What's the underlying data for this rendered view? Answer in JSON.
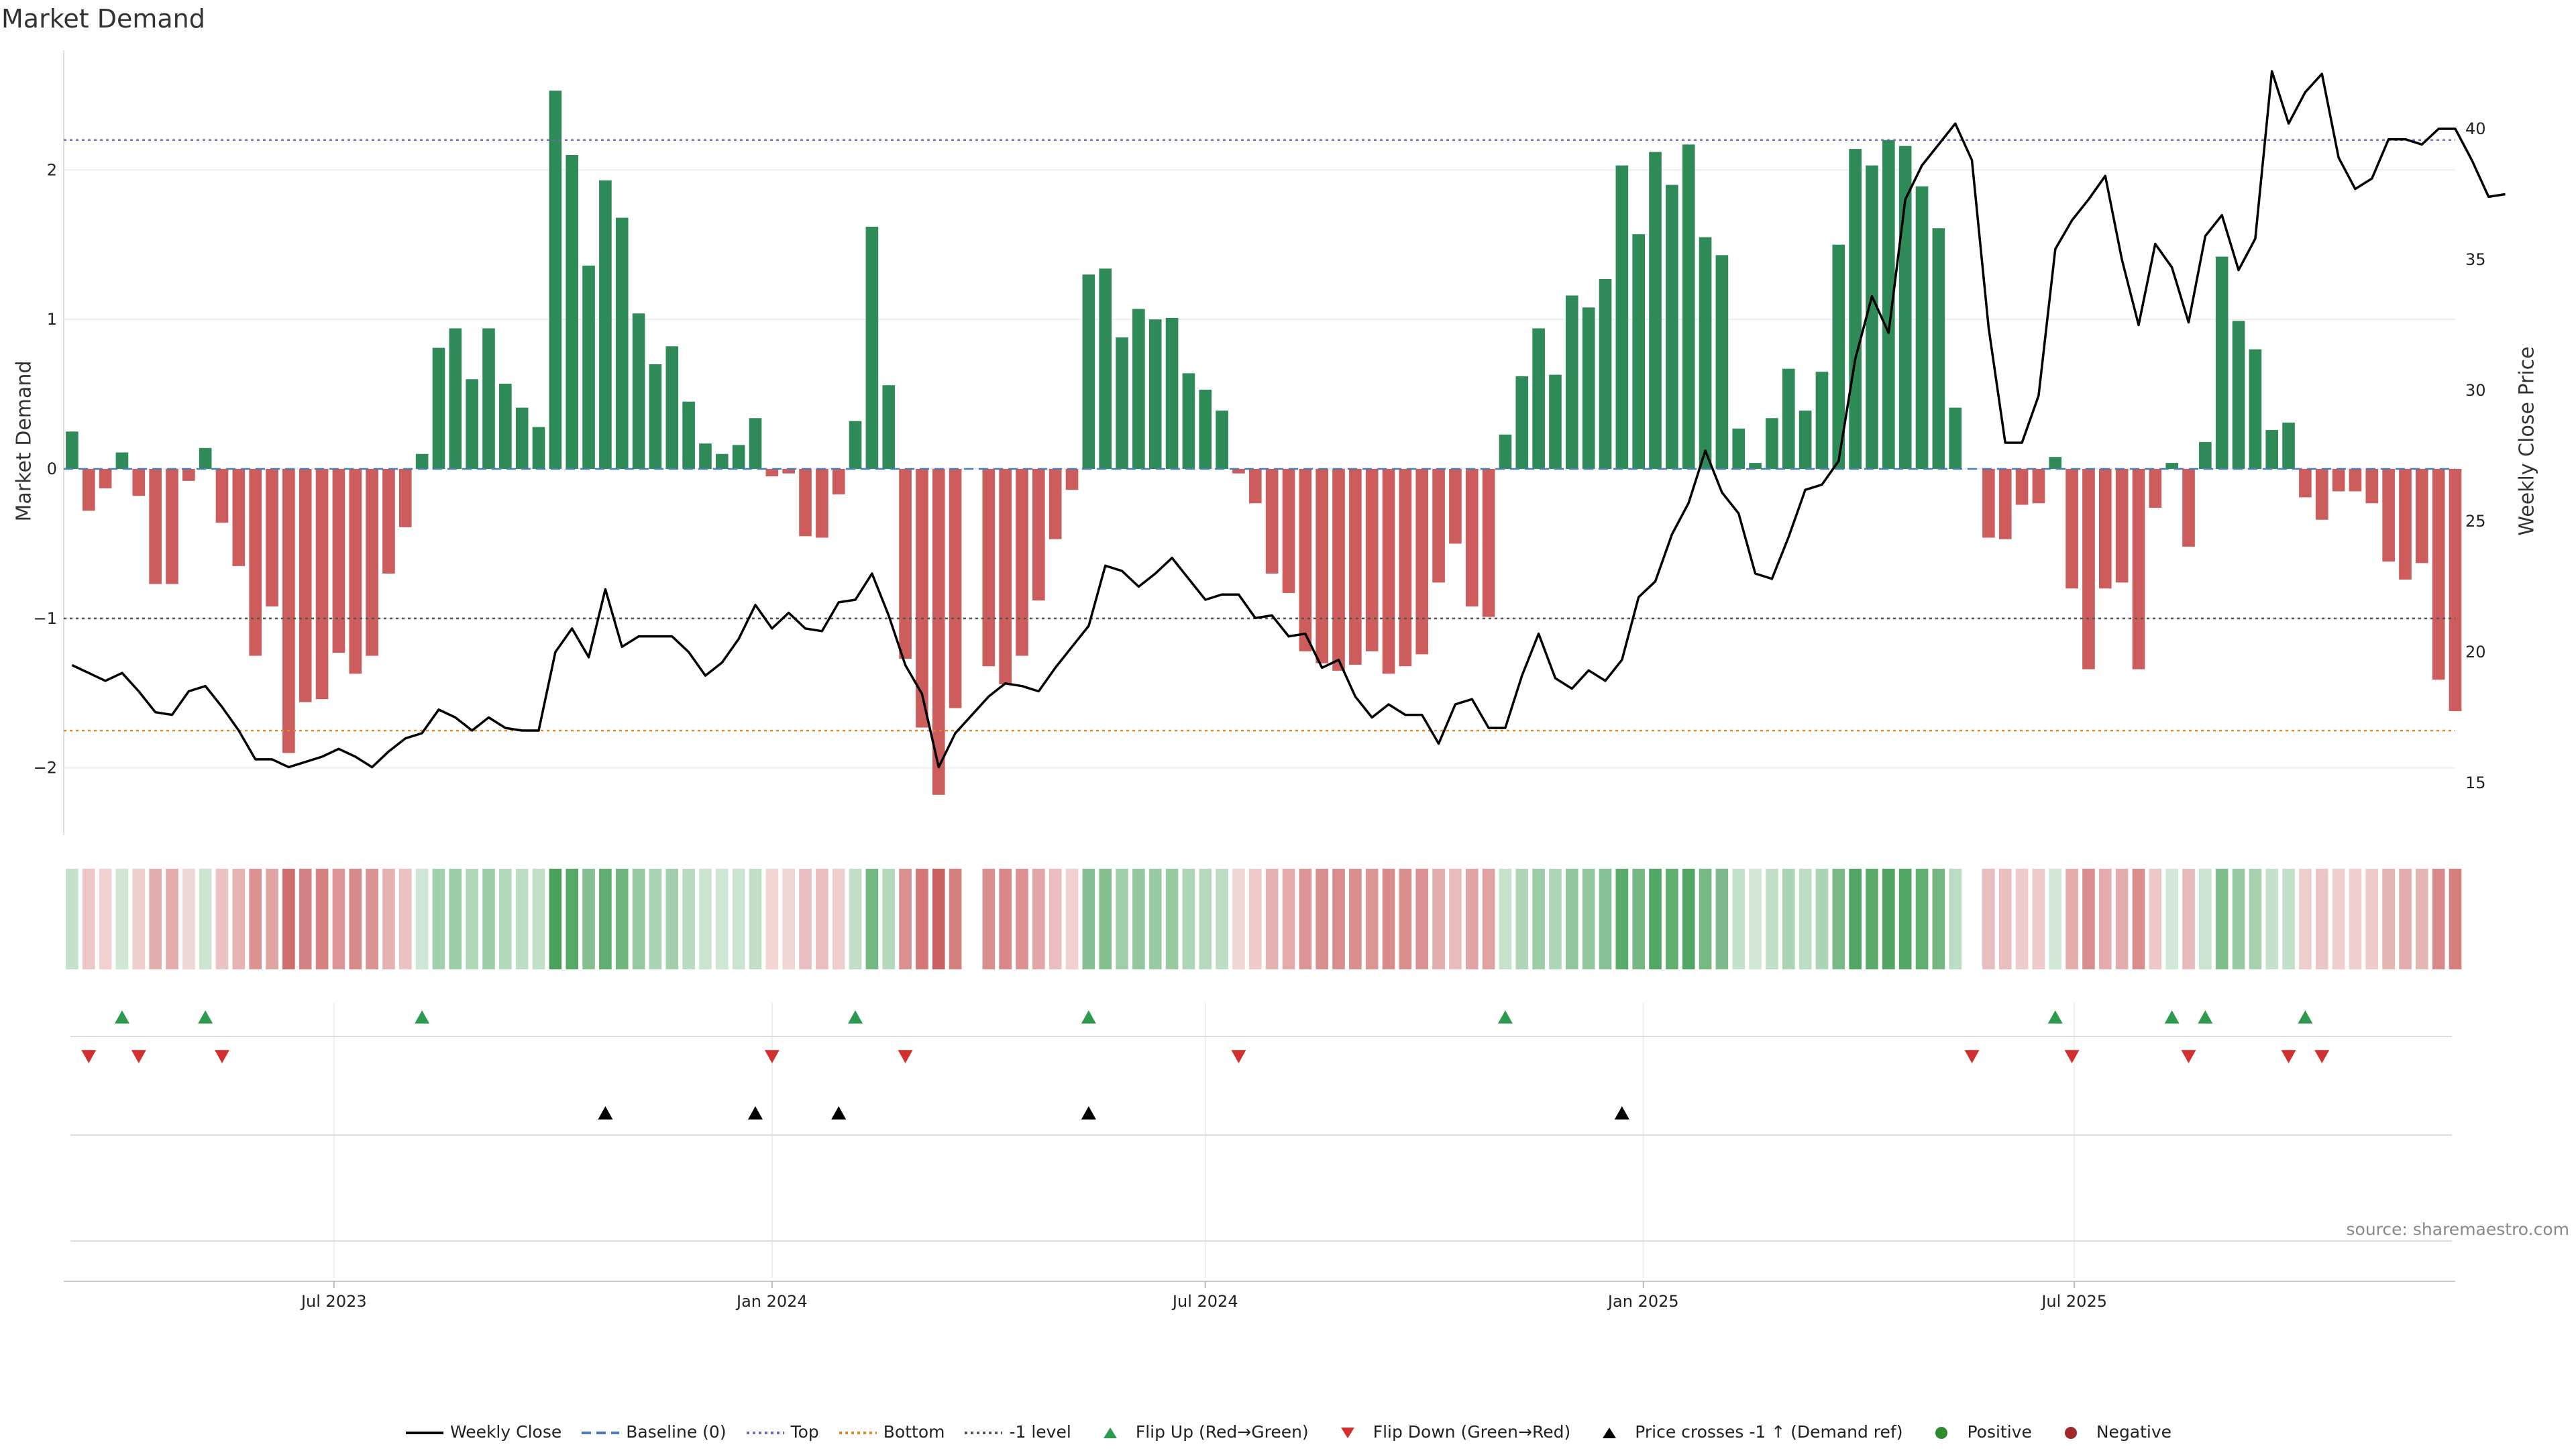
{
  "chart_data": {
    "type": "bar",
    "title": "Market Demand",
    "ylabel": "Market Demand",
    "y2label": "Weekly Close Price",
    "ylim": [
      -2.45,
      2.8
    ],
    "y2lim": [
      13,
      43
    ],
    "yticks": [
      2,
      1,
      0,
      -1,
      -2
    ],
    "ytick_labels": [
      "2",
      "1",
      "0",
      "−1",
      "−2"
    ],
    "y2ticks": [
      40,
      35,
      30,
      25,
      20,
      15
    ],
    "levels": {
      "top": 2.2,
      "bottom": -1.75,
      "minus_one": -1,
      "baseline": 0
    },
    "date_start": "2023-03-13",
    "xticks": [
      "Jul 2023",
      "Jan 2024",
      "Jul 2024",
      "Jan 2025",
      "Jul 2025"
    ],
    "xtick_dates": [
      "2023-07-01",
      "2024-01-01",
      "2024-07-01",
      "2025-01-01",
      "2025-07-01"
    ],
    "x_end_week": 143.5,
    "demand": [
      0.25,
      -0.28,
      -0.13,
      0.11,
      -0.18,
      -0.77,
      -0.77,
      -0.08,
      0.14,
      -0.36,
      -0.65,
      -1.25,
      -0.92,
      -1.9,
      -1.56,
      -1.54,
      -1.23,
      -1.37,
      -1.25,
      -0.7,
      -0.39,
      0.1,
      0.81,
      0.94,
      0.6,
      0.94,
      0.57,
      0.41,
      0.28,
      2.53,
      2.1,
      1.36,
      1.93,
      1.68,
      1.04,
      0.7,
      0.82,
      0.45,
      0.17,
      0.1,
      0.16,
      0.34,
      -0.05,
      -0.03,
      -0.45,
      -0.46,
      -0.17,
      0.32,
      1.62,
      0.56,
      -1.27,
      -1.73,
      -2.18,
      -1.6,
      0,
      -1.32,
      -1.44,
      -1.25,
      -0.88,
      -0.47,
      -0.14,
      1.3,
      1.34,
      0.88,
      1.07,
      1.0,
      1.01,
      0.64,
      0.53,
      0.39,
      -0.03,
      -0.23,
      -0.7,
      -0.83,
      -1.22,
      -1.3,
      -1.35,
      -1.31,
      -1.22,
      -1.37,
      -1.32,
      -1.24,
      -0.76,
      -0.5,
      -0.92,
      -0.99,
      0.23,
      0.62,
      0.94,
      0.63,
      1.16,
      1.08,
      1.27,
      2.03,
      1.57,
      2.12,
      1.9,
      2.17,
      1.55,
      1.43,
      0.27,
      0.04,
      0.34,
      0.67,
      0.39,
      0.65,
      1.5,
      2.14,
      2.03,
      2.2,
      2.16,
      1.89,
      1.61,
      0.41,
      0,
      -0.46,
      -0.47,
      -0.24,
      -0.23,
      0.08,
      -0.8,
      -1.34,
      -0.8,
      -0.76,
      -1.34,
      -0.26,
      0.04,
      -0.52,
      0.18,
      1.42,
      0.99,
      0.8,
      0.26,
      0.31,
      -0.19,
      -0.34,
      -0.15,
      -0.15,
      -0.23,
      -0.62,
      -0.74,
      -0.63,
      -1.41,
      -1.62
    ],
    "close": [
      19.5,
      19.2,
      18.9,
      19.2,
      18.5,
      17.7,
      17.6,
      18.5,
      18.7,
      17.9,
      17.0,
      15.9,
      15.9,
      15.6,
      15.8,
      16.0,
      16.3,
      16.0,
      15.6,
      16.2,
      16.7,
      16.9,
      17.8,
      17.5,
      17.0,
      17.5,
      17.1,
      17.0,
      17.0,
      20.0,
      20.9,
      19.8,
      22.4,
      20.2,
      20.6,
      20.6,
      20.6,
      20.0,
      19.1,
      19.6,
      20.5,
      21.8,
      20.9,
      21.5,
      20.9,
      20.8,
      21.9,
      22.0,
      23.0,
      21.4,
      19.5,
      18.4,
      15.6,
      16.9,
      17.6,
      18.3,
      18.8,
      18.7,
      18.5,
      19.4,
      20.2,
      21.0,
      23.3,
      23.1,
      22.5,
      23.0,
      23.6,
      22.8,
      22.0,
      22.2,
      22.2,
      21.3,
      21.4,
      20.6,
      20.7,
      19.4,
      19.7,
      18.3,
      17.5,
      18.0,
      17.6,
      17.6,
      16.5,
      18.0,
      18.2,
      17.1,
      17.1,
      19.1,
      20.7,
      19.0,
      18.6,
      19.3,
      18.9,
      19.7,
      22.1,
      22.7,
      24.5,
      25.7,
      27.7,
      26.1,
      25.3,
      23.0,
      22.8,
      24.4,
      26.2,
      26.4,
      27.3,
      31.2,
      33.6,
      32.2,
      37.3,
      38.6,
      39.4,
      40.2,
      38.8,
      32.4,
      28.0,
      28.0,
      29.8,
      35.4,
      36.5,
      37.3,
      38.2,
      35.0,
      32.5,
      35.6,
      34.7,
      32.6,
      35.9,
      36.7,
      34.6,
      35.8,
      42.2,
      40.2,
      41.4,
      42.1,
      38.9,
      37.7,
      38.1,
      39.6,
      39.6,
      39.4,
      40.0,
      40.0,
      38.8,
      37.4,
      37.5
    ],
    "flip_up_weeks": [
      3,
      8,
      21,
      47,
      61,
      86,
      119,
      126,
      128,
      134
    ],
    "flip_down_weeks": [
      1,
      4,
      9,
      42,
      50,
      70,
      114,
      120,
      127,
      133,
      135
    ],
    "price_cross_weeks": [
      32,
      41,
      46,
      61,
      93
    ],
    "legend": [
      {
        "label": "Weekly Close",
        "kind": "line",
        "color": "#000000"
      },
      {
        "label": "Baseline (0)",
        "kind": "dash",
        "color": "#4a7ebb"
      },
      {
        "label": "Top",
        "kind": "dot",
        "color": "#6a6abf"
      },
      {
        "label": "Bottom",
        "kind": "dot",
        "color": "#e08a2a"
      },
      {
        "label": "-1 level",
        "kind": "dot",
        "color": "#555555"
      },
      {
        "label": "Flip Up (Red→Green)",
        "kind": "tri-up",
        "color": "#2e9a4e"
      },
      {
        "label": "Flip Down (Green→Red)",
        "kind": "tri-down",
        "color": "#d22f2f"
      },
      {
        "label": "Price crosses -1 ↑ (Demand ref)",
        "kind": "tri-up",
        "color": "#000000"
      },
      {
        "label": "Positive",
        "kind": "dot-marker",
        "color": "#2e8b2e"
      },
      {
        "label": "Negative",
        "kind": "dot-marker",
        "color": "#a02a2a"
      }
    ],
    "colors": {
      "positive": "#2e8b57",
      "negative": "#cd5c5c",
      "top": "#6a6abf",
      "bottom": "#e08a2a",
      "minus_one": "#555555",
      "baseline": "#4a7ebb"
    },
    "source": "source: sharemaestro.com"
  }
}
